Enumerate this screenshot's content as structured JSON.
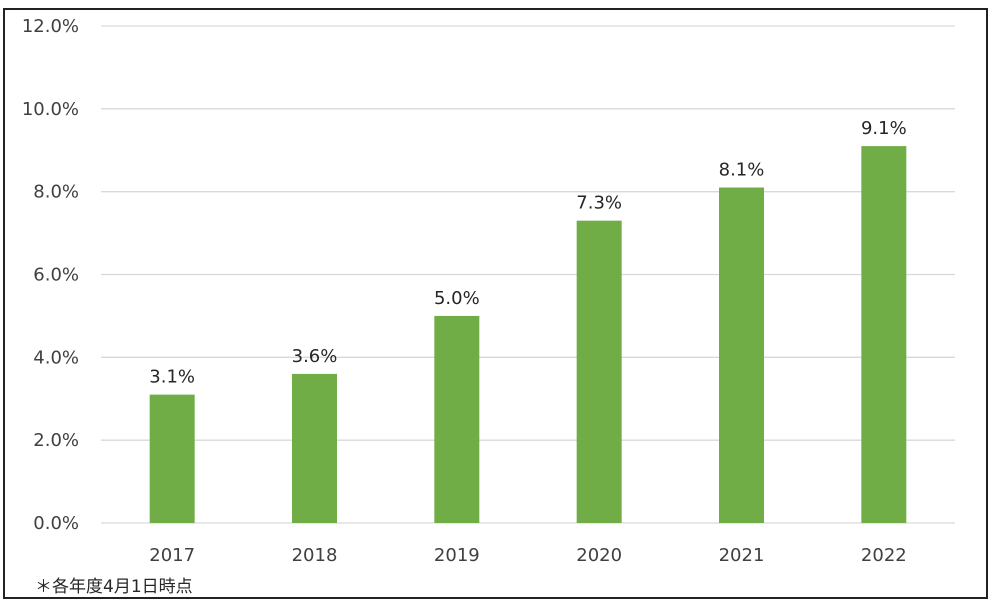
{
  "chart_data": {
    "type": "bar",
    "categories": [
      "2017",
      "2018",
      "2019",
      "2020",
      "2021",
      "2022"
    ],
    "values": [
      3.1,
      3.6,
      5.0,
      7.3,
      8.1,
      9.1
    ],
    "data_labels": [
      "3.1%",
      "3.6%",
      "5.0%",
      "7.3%",
      "8.1%",
      "9.1%"
    ],
    "ylim": [
      0,
      12
    ],
    "yticks": [
      0,
      2,
      4,
      6,
      8,
      10,
      12
    ],
    "ytick_labels": [
      "0.0%",
      "2.0%",
      "4.0%",
      "6.0%",
      "8.0%",
      "10.0%",
      "12.0%"
    ],
    "grid": true,
    "legend": "none",
    "colors": {
      "bar": "#70AD47",
      "grid": "#D9D9D9",
      "axis_text": "#404040"
    }
  },
  "footnote": "＊各年度4月1日時点"
}
